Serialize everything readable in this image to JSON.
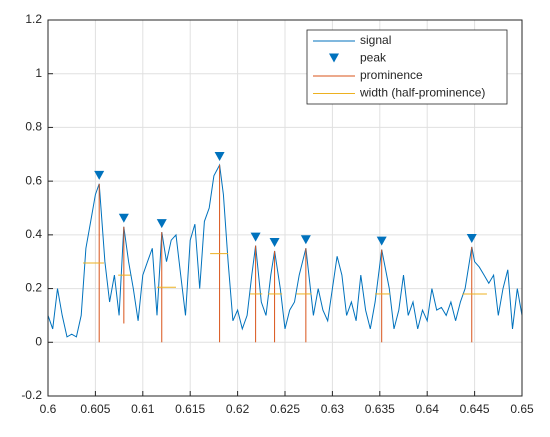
{
  "chart_data": {
    "type": "line",
    "x": [
      0.6,
      0.6005,
      0.601,
      0.6015,
      0.602,
      0.6025,
      0.603,
      0.6035,
      0.604,
      0.6045,
      0.605,
      0.6054,
      0.606,
      0.6065,
      0.607,
      0.6075,
      0.608,
      0.6085,
      0.609,
      0.6095,
      0.61,
      0.6105,
      0.611,
      0.6115,
      0.612,
      0.6125,
      0.613,
      0.6135,
      0.614,
      0.6145,
      0.615,
      0.6155,
      0.616,
      0.6165,
      0.617,
      0.6175,
      0.6181,
      0.6185,
      0.619,
      0.6195,
      0.62,
      0.6205,
      0.621,
      0.6215,
      0.6219,
      0.6225,
      0.623,
      0.6235,
      0.6239,
      0.6245,
      0.625,
      0.6255,
      0.626,
      0.6265,
      0.6272,
      0.628,
      0.6285,
      0.629,
      0.6295,
      0.63,
      0.6305,
      0.631,
      0.6315,
      0.632,
      0.6325,
      0.633,
      0.6335,
      0.634,
      0.6345,
      0.6352,
      0.636,
      0.6365,
      0.637,
      0.6375,
      0.638,
      0.6385,
      0.639,
      0.6395,
      0.64,
      0.6405,
      0.641,
      0.6415,
      0.642,
      0.6425,
      0.643,
      0.6435,
      0.644,
      0.6447,
      0.645,
      0.6455,
      0.646,
      0.6465,
      0.647,
      0.6475,
      0.648,
      0.6485,
      0.649,
      0.6495,
      0.65
    ],
    "series": [
      {
        "name": "signal",
        "color": "#0072bd",
        "values": [
          0.1,
          0.05,
          0.2,
          0.1,
          0.02,
          0.03,
          0.02,
          0.1,
          0.35,
          0.45,
          0.55,
          0.59,
          0.3,
          0.15,
          0.25,
          0.1,
          0.43,
          0.3,
          0.2,
          0.08,
          0.25,
          0.3,
          0.35,
          0.1,
          0.41,
          0.3,
          0.38,
          0.4,
          0.25,
          0.1,
          0.38,
          0.44,
          0.2,
          0.45,
          0.5,
          0.62,
          0.66,
          0.55,
          0.3,
          0.08,
          0.12,
          0.05,
          0.1,
          0.25,
          0.36,
          0.15,
          0.1,
          0.25,
          0.34,
          0.2,
          0.05,
          0.12,
          0.15,
          0.25,
          0.35,
          0.1,
          0.2,
          0.12,
          0.08,
          0.2,
          0.32,
          0.25,
          0.1,
          0.15,
          0.08,
          0.25,
          0.12,
          0.05,
          0.15,
          0.345,
          0.2,
          0.05,
          0.12,
          0.25,
          0.1,
          0.15,
          0.05,
          0.12,
          0.08,
          0.2,
          0.12,
          0.13,
          0.1,
          0.15,
          0.08,
          0.15,
          0.2,
          0.355,
          0.3,
          0.28,
          0.25,
          0.22,
          0.25,
          0.1,
          0.2,
          0.27,
          0.05,
          0.2,
          0.1
        ]
      }
    ],
    "peaks": {
      "name": "peak",
      "color": "#0072bd",
      "x": [
        0.6054,
        0.608,
        0.612,
        0.6181,
        0.6219,
        0.6239,
        0.6272,
        0.6352,
        0.6447
      ],
      "values": [
        0.59,
        0.43,
        0.41,
        0.66,
        0.36,
        0.34,
        0.35,
        0.345,
        0.355
      ]
    },
    "prominence": {
      "name": "prominence",
      "color": "#d95319",
      "base": [
        0,
        0.07,
        0,
        0,
        0,
        0,
        0,
        0,
        0
      ]
    },
    "widths": {
      "name": "width (half-prominence)",
      "color": "#edb120",
      "height": [
        0.295,
        0.25,
        0.205,
        0.33,
        0.18,
        0.18,
        0.18,
        0.18,
        0.18
      ],
      "left": [
        0.6037,
        0.6074,
        0.6115,
        0.6171,
        0.6213,
        0.6232,
        0.6262,
        0.6345,
        0.6437
      ],
      "right": [
        0.6059,
        0.6087,
        0.6135,
        0.619,
        0.6226,
        0.6247,
        0.6278,
        0.6361,
        0.6463
      ]
    },
    "xlim": [
      0.6,
      0.65
    ],
    "ylim": [
      -0.2,
      1.2
    ],
    "xticks": [
      0.6,
      0.605,
      0.61,
      0.615,
      0.62,
      0.625,
      0.63,
      0.635,
      0.64,
      0.645,
      0.65
    ],
    "yticks": [
      -0.2,
      0,
      0.2,
      0.4,
      0.6,
      0.8,
      1,
      1.2
    ],
    "grid": true,
    "legend": "upper right"
  }
}
